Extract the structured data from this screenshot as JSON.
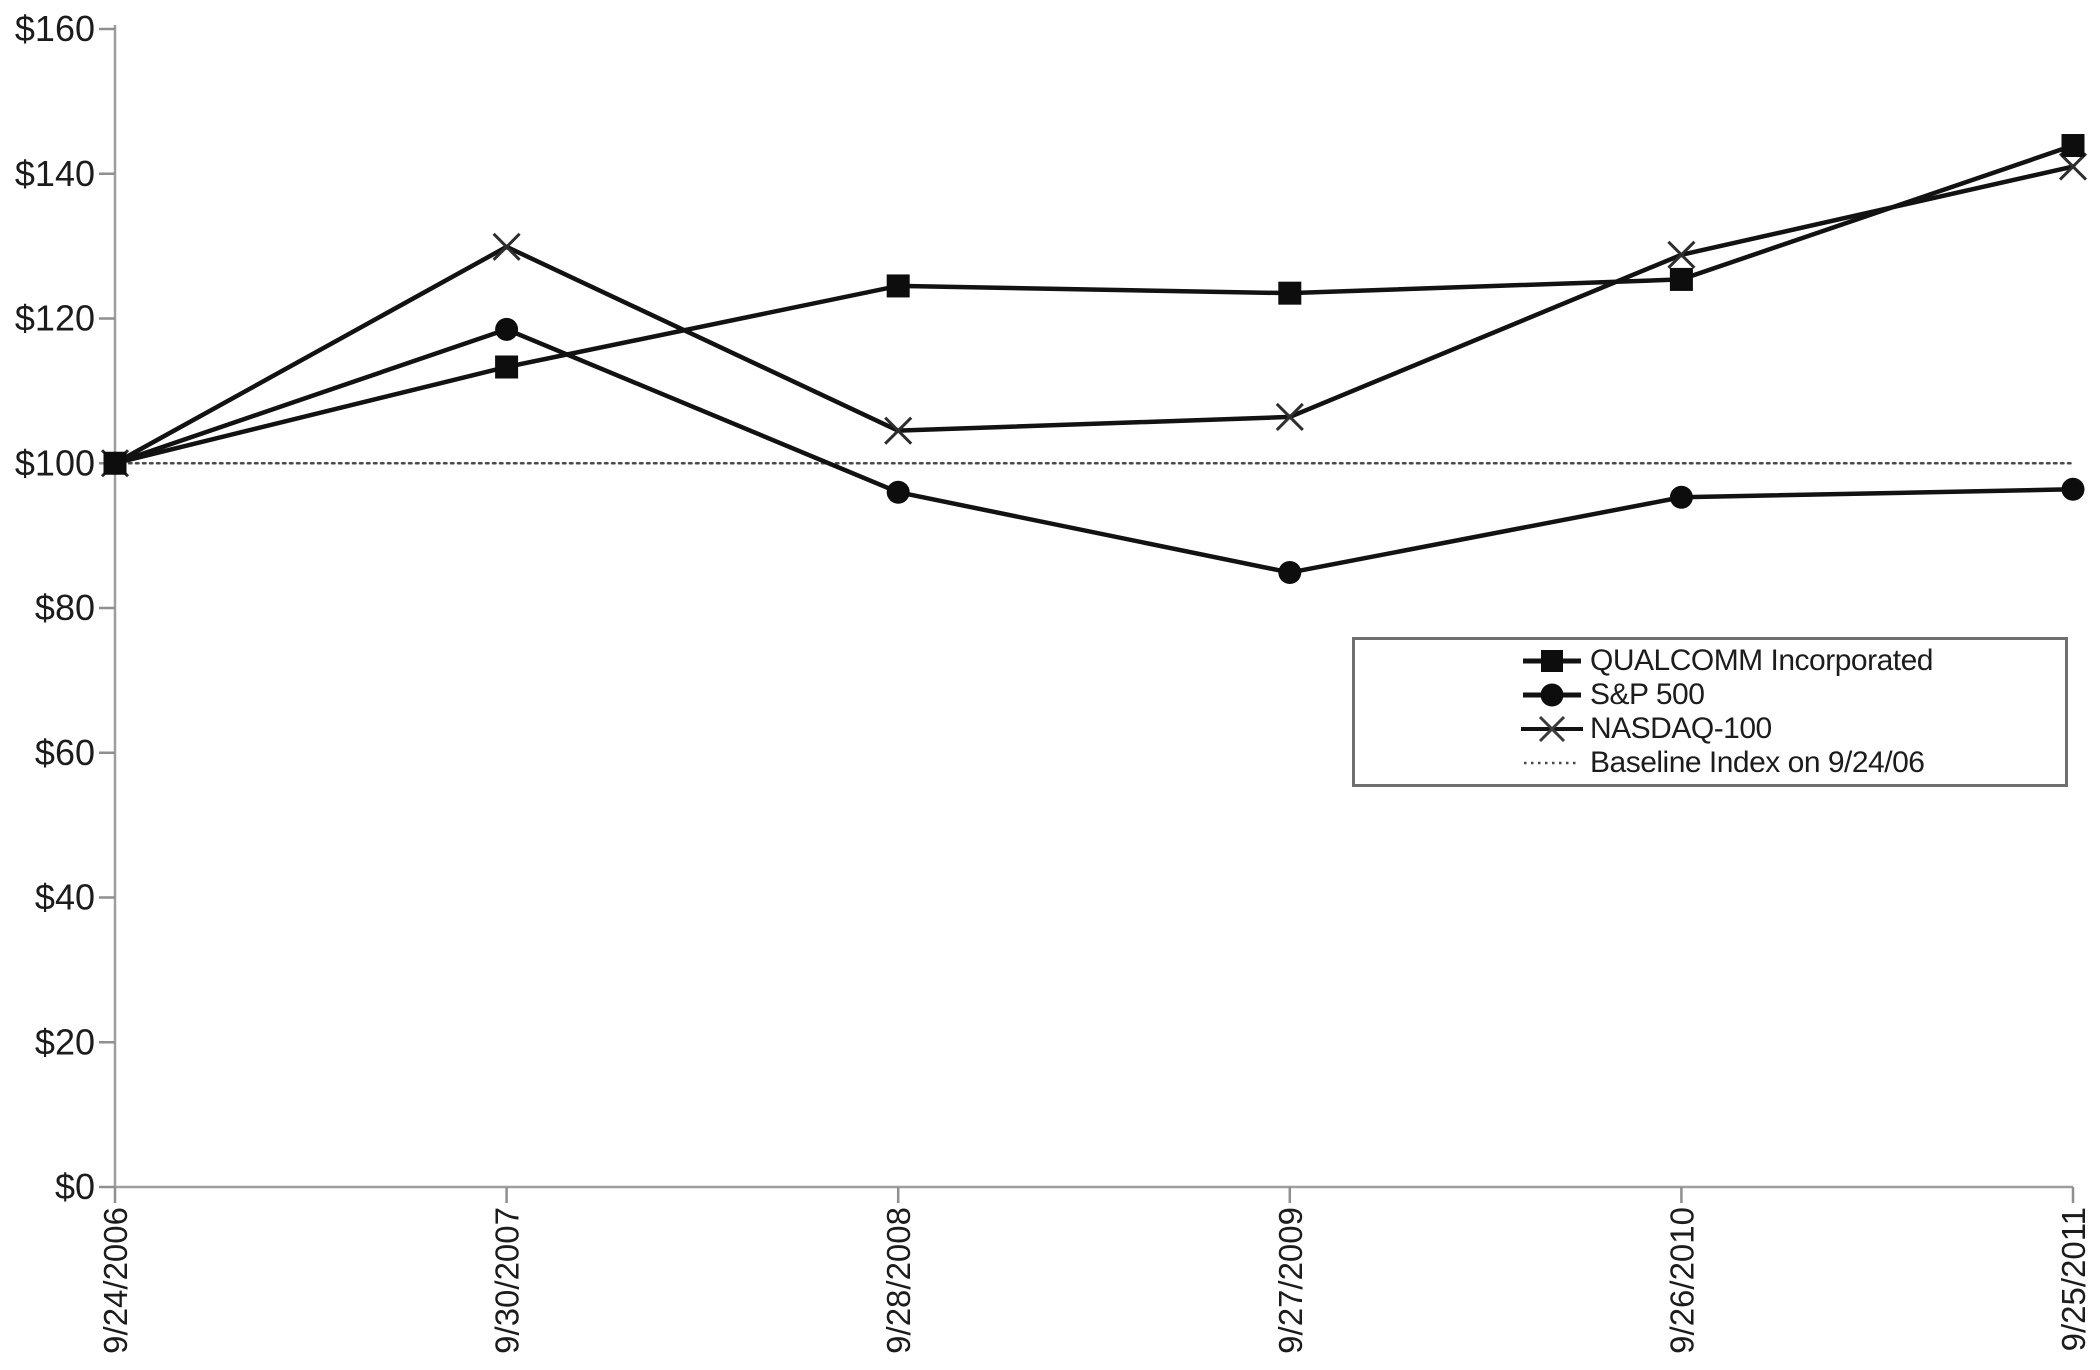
{
  "chart_data": {
    "type": "line",
    "title": "",
    "xlabel": "",
    "ylabel": "",
    "currency_prefix": "$",
    "ylim": [
      0,
      160
    ],
    "y_tick_step": 20,
    "y_tick_labels": [
      "$0",
      "$20",
      "$40",
      "$60",
      "$80",
      "$100",
      "$120",
      "$140",
      "$160"
    ],
    "x_labels": [
      "9/24/2006",
      "9/30/2007",
      "9/28/2008",
      "9/27/2009",
      "9/26/2010",
      "9/25/2011"
    ],
    "x_label_rotation_degrees": -90,
    "grid": false,
    "legend_position": "middle-right",
    "legend_has_border": true,
    "series": [
      {
        "name": "QUALCOMM Incorporated",
        "marker": "square",
        "line_style": "solid",
        "values": [
          100,
          113.3,
          124.5,
          123.5,
          125.4,
          143.9
        ]
      },
      {
        "name": "S&P 500",
        "marker": "circle",
        "line_style": "solid",
        "values": [
          100,
          118.5,
          96.0,
          84.9,
          95.3,
          96.4
        ]
      },
      {
        "name": "NASDAQ-100",
        "marker": "x",
        "line_style": "solid",
        "values": [
          100,
          129.9,
          104.5,
          106.4,
          128.8,
          141.0
        ]
      },
      {
        "name": "Baseline Index on 9/24/06",
        "marker": "none",
        "line_style": "dotted",
        "values": [
          100,
          100,
          100,
          100,
          100,
          100
        ]
      }
    ]
  },
  "colors": {
    "background": "#ffffff",
    "series_line": "#121212",
    "marker_fill": "#0d0d0d",
    "x_marker_stroke": "#2e2e2e",
    "baseline_dotted": "#4a4a4a",
    "axis_line": "#9e9e9e",
    "tick_mark": "#8f8f8f",
    "tick_label_text": "#1c1c1c",
    "legend_border": "#6f6f6f"
  }
}
